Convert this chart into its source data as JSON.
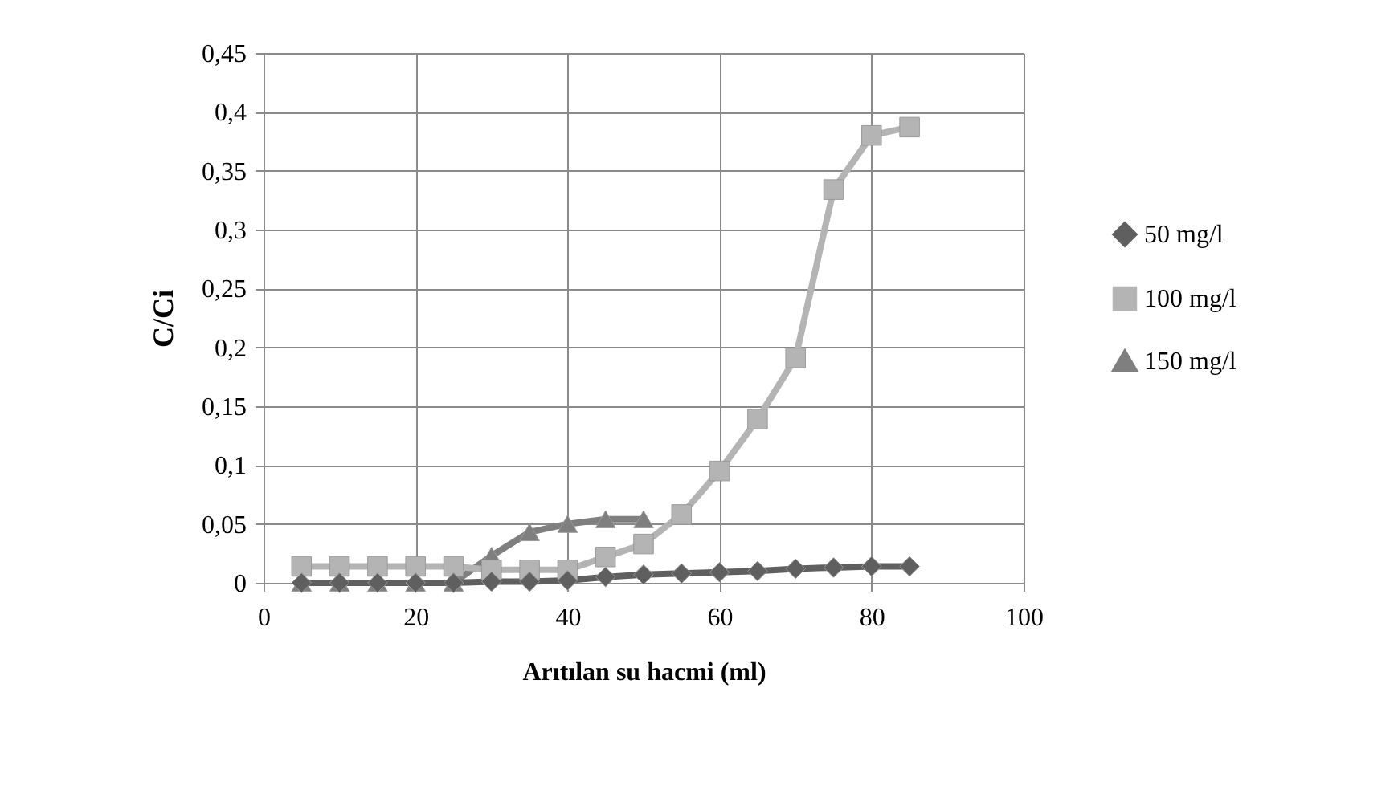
{
  "chart_data": {
    "type": "line",
    "xlabel": "Arıtılan su hacmi (ml)",
    "ylabel": "C/Ci",
    "x": [
      5,
      10,
      15,
      20,
      25,
      30,
      35,
      40,
      45,
      50,
      55,
      60,
      65,
      70,
      75,
      80,
      85
    ],
    "series": [
      {
        "name": "50 mg/l",
        "color": "#5f5f5f",
        "marker": "diamond",
        "values": [
          0,
          0,
          0,
          0,
          0,
          0.001,
          0.001,
          0.002,
          0.005,
          0.007,
          0.008,
          0.009,
          0.01,
          0.012,
          0.013,
          0.014,
          0.014
        ]
      },
      {
        "name": "100 mg/l",
        "color": "#b4b4b4",
        "marker": "square",
        "values": [
          0.014,
          0.014,
          0.014,
          0.014,
          0.014,
          0.011,
          0.011,
          0.011,
          0.022,
          0.033,
          0.058,
          0.095,
          0.139,
          0.191,
          0.334,
          0.38,
          0.387
        ]
      },
      {
        "name": "150 mg/l",
        "color": "#7f7f7f",
        "marker": "triangle",
        "values": [
          0,
          0,
          0,
          0,
          0,
          0.023,
          0.043,
          0.05,
          0.054,
          0.054,
          null,
          null,
          null,
          null,
          null,
          null,
          null
        ]
      }
    ],
    "xlim": [
      0,
      100
    ],
    "xticks": [
      0,
      20,
      40,
      60,
      80,
      100
    ],
    "ylim": [
      0,
      0.45
    ],
    "yticks": [
      0,
      {
        "value": 0.05,
        "label": "0,05"
      },
      {
        "value": 0.1,
        "label": "0,1"
      },
      {
        "value": 0.15,
        "label": "0,15"
      },
      {
        "value": 0.2,
        "label": "0,2"
      },
      {
        "value": 0.25,
        "label": "0,25"
      },
      {
        "value": 0.3,
        "label": "0,3"
      },
      {
        "value": 0.35,
        "label": "0,35"
      },
      {
        "value": 0.4,
        "label": "0,4"
      },
      {
        "value": 0.45,
        "label": "0,45"
      }
    ],
    "grid": true,
    "legend": "right",
    "line_style": "solid"
  }
}
